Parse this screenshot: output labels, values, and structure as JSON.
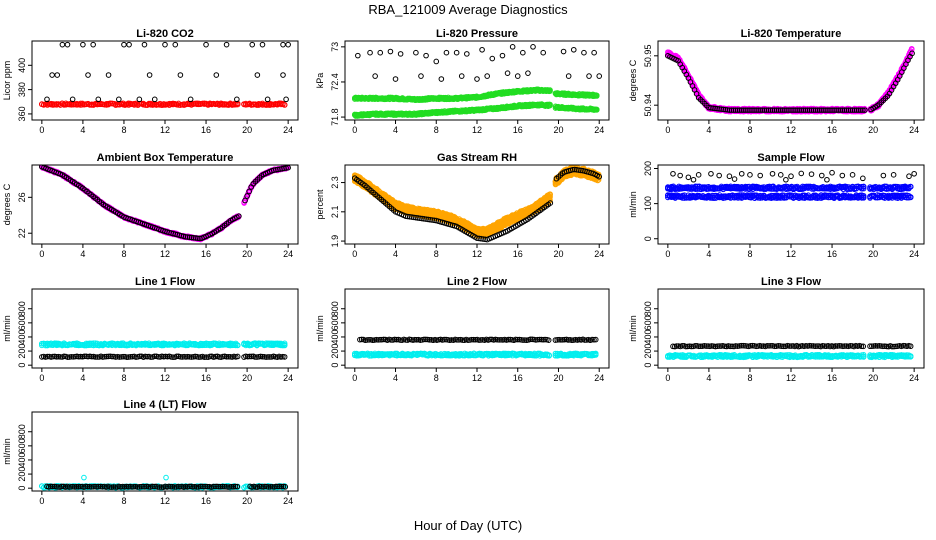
{
  "figure": {
    "title": "RBA_121009  Average Diagnostics",
    "xlabel": "Hour of Day (UTC)"
  },
  "colors": {
    "red": "#ff0000",
    "green": "#22dd22",
    "magenta": "#ff00ff",
    "orange": "#ffa500",
    "blue": "#0000ff",
    "cyan": "#00eeee",
    "black": "#000000"
  },
  "chart_data": [
    {
      "type": "scatter",
      "title": "Li-820 CO2",
      "ylabel": "Licor ppm",
      "xlim": [
        0,
        24
      ],
      "ylim": [
        355,
        420
      ],
      "xticks": [
        0,
        4,
        8,
        12,
        16,
        20,
        24
      ],
      "yticks": [
        360,
        380,
        400
      ],
      "series": [
        {
          "color": "red",
          "style": "band",
          "x": [
            0,
            19.2
          ],
          "y": [
            368,
            370
          ],
          "width": 3,
          "segments": [
            [
              0,
              19.2
            ],
            [
              19.7,
              23.8
            ]
          ]
        },
        {
          "color": "black",
          "style": "sparse",
          "x": [
            2.0,
            2.5,
            4.0,
            5.0,
            8.0,
            8.5,
            10.0,
            12.0,
            13.0,
            16.0,
            18.0,
            20.5,
            21.5,
            23.5,
            24.0,
            1.0,
            1.5,
            4.5,
            6.5,
            10.5,
            13.5,
            17.0,
            21.0,
            23.5,
            0.5,
            3.0,
            5.5,
            7.5,
            9.5,
            11.0,
            14.5,
            19.0,
            22.0,
            23.8
          ],
          "y": [
            417,
            417,
            417,
            417,
            417,
            417,
            417,
            417,
            417,
            417,
            417,
            417,
            417,
            417,
            417,
            392,
            392,
            392,
            392,
            392,
            392,
            392,
            392,
            392,
            372,
            372,
            372,
            372,
            372,
            372,
            372,
            372,
            372,
            372
          ]
        }
      ]
    },
    {
      "type": "scatter",
      "title": "Li-820 Pressure",
      "ylabel": "kPa",
      "xlim": [
        0,
        24
      ],
      "ylim": [
        71.75,
        73.1
      ],
      "xticks": [
        0,
        4,
        8,
        12,
        16,
        20,
        24
      ],
      "yticks": [
        71.8,
        72.4,
        73.0
      ],
      "series": [
        {
          "color": "green",
          "style": "curve",
          "x": [
            0,
            2,
            4,
            6,
            8,
            10,
            12,
            14,
            16,
            18,
            19.2,
            19.7,
            22,
            23.8
          ],
          "y": [
            72.12,
            72.12,
            72.12,
            72.1,
            72.12,
            72.12,
            72.14,
            72.2,
            72.24,
            72.26,
            72.25,
            72.2,
            72.18,
            72.17
          ],
          "width": 3
        },
        {
          "color": "green",
          "style": "curve",
          "x": [
            0,
            2,
            4,
            6,
            8,
            10,
            12,
            14,
            16,
            18,
            19.2,
            19.7,
            22,
            23.8
          ],
          "y": [
            71.83,
            71.85,
            71.85,
            71.85,
            71.88,
            71.9,
            71.92,
            71.95,
            71.99,
            72.01,
            72.0,
            71.97,
            71.94,
            71.93
          ],
          "width": 3
        },
        {
          "color": "black",
          "style": "sparse",
          "x": [
            0.3,
            1.5,
            2.5,
            3.5,
            4.5,
            6.0,
            7.0,
            8.0,
            9.0,
            10.0,
            11.0,
            12.5,
            13.5,
            14.5,
            15.5,
            16.5,
            17.5,
            18.5,
            20.5,
            21.5,
            22.5,
            23.5,
            2.0,
            4.0,
            6.5,
            8.5,
            10.5,
            12.0,
            13.0,
            15.0,
            16.0,
            17.0,
            21.0,
            23.0,
            24.0
          ],
          "y": [
            72.85,
            72.9,
            72.9,
            72.92,
            72.88,
            72.9,
            72.85,
            72.75,
            72.9,
            72.9,
            72.88,
            72.95,
            72.8,
            72.85,
            73.0,
            72.9,
            73.0,
            72.9,
            72.92,
            72.95,
            72.9,
            72.9,
            72.5,
            72.45,
            72.5,
            72.45,
            72.5,
            72.45,
            72.5,
            72.55,
            72.5,
            72.55,
            72.5,
            72.5,
            72.5
          ]
        }
      ]
    },
    {
      "type": "scatter",
      "title": "Li-820 Temperature",
      "ylabel": "degrees C",
      "xlim": [
        0,
        24
      ],
      "ylim": [
        50.937,
        50.953
      ],
      "xticks": [
        0,
        4,
        8,
        12,
        16,
        20,
        24
      ],
      "yticks": [
        50.94,
        50.95
      ],
      "series": [
        {
          "color": "magenta",
          "style": "curve",
          "x": [
            0,
            1,
            2,
            3,
            4,
            6,
            8,
            10,
            12,
            14,
            16,
            18,
            19.2,
            19.7,
            20.5,
            21.5,
            22.5,
            23.5,
            23.8
          ],
          "y": [
            50.9505,
            50.9495,
            50.946,
            50.942,
            50.9395,
            50.939,
            50.939,
            50.939,
            50.939,
            50.939,
            50.939,
            50.939,
            50.939,
            50.939,
            50.94,
            50.9425,
            50.946,
            50.95,
            50.9515
          ],
          "width": 5
        },
        {
          "color": "black",
          "style": "curve",
          "x": [
            0,
            1,
            2,
            3,
            4,
            6,
            8,
            10,
            12,
            14,
            16,
            18,
            19.2,
            19.7,
            20.5,
            21.5,
            22.5,
            23.5,
            23.8
          ],
          "y": [
            50.95,
            50.949,
            50.9455,
            50.9415,
            50.9395,
            50.939,
            50.939,
            50.939,
            50.939,
            50.939,
            50.939,
            50.939,
            50.939,
            50.939,
            50.94,
            50.942,
            50.9455,
            50.9495,
            50.9505
          ],
          "width": 0.6
        }
      ]
    },
    {
      "type": "scatter",
      "title": "Ambient Box Temperature",
      "ylabel": "degrees C",
      "xlim": [
        0,
        24
      ],
      "ylim": [
        20.8,
        29.6
      ],
      "xticks": [
        0,
        4,
        8,
        12,
        16,
        20,
        24
      ],
      "yticks": [
        22,
        26
      ],
      "series": [
        {
          "color": "magenta",
          "style": "curve",
          "x": [
            0,
            2,
            4,
            6,
            8,
            10,
            12,
            14,
            15.5,
            16.5,
            17.5,
            18.5,
            19.2,
            19.7,
            20.5,
            21.5,
            22.5,
            23.5,
            24
          ],
          "y": [
            29.4,
            28.5,
            27.0,
            25.2,
            23.8,
            23.0,
            22.2,
            21.6,
            21.4,
            21.9,
            22.6,
            23.5,
            23.9,
            25.4,
            27.4,
            28.5,
            29.0,
            29.2,
            29.3
          ],
          "width": 3
        },
        {
          "color": "black",
          "style": "curve",
          "x": [
            0,
            2,
            4,
            6,
            8,
            10,
            12,
            14,
            15.5,
            16.5,
            17.5,
            18.5,
            19.2,
            19.7,
            20.5,
            21.5,
            22.5,
            23.5,
            24
          ],
          "y": [
            29.4,
            28.5,
            27.0,
            25.2,
            23.8,
            23.0,
            22.2,
            21.6,
            21.4,
            21.9,
            22.6,
            23.5,
            23.9,
            25.4,
            27.4,
            28.5,
            29.0,
            29.2,
            29.3
          ],
          "width": 0.6
        }
      ]
    },
    {
      "type": "scatter",
      "title": "Gas Stream RH",
      "ylabel": "percent",
      "xlim": [
        0,
        24
      ],
      "ylim": [
        1.88,
        2.42
      ],
      "xticks": [
        0,
        4,
        8,
        12,
        16,
        20,
        24
      ],
      "yticks": [
        1.9,
        2.1,
        2.3
      ],
      "series": [
        {
          "color": "orange",
          "style": "curve",
          "x": [
            0,
            1,
            2,
            3,
            4,
            5,
            6,
            7,
            8,
            9,
            10,
            11,
            12,
            13,
            14,
            15,
            16,
            17,
            18,
            19.2,
            19.7,
            20.5,
            21.5,
            22.5,
            23.5,
            24
          ],
          "y": [
            2.33,
            2.29,
            2.24,
            2.19,
            2.14,
            2.12,
            2.1,
            2.09,
            2.08,
            2.06,
            2.04,
            2.0,
            1.96,
            1.96,
            2.0,
            2.04,
            2.07,
            2.1,
            2.14,
            2.2,
            2.3,
            2.36,
            2.38,
            2.37,
            2.35,
            2.33
          ],
          "width": 12
        },
        {
          "color": "black",
          "style": "curve",
          "x": [
            0,
            1,
            2,
            3,
            4,
            5,
            6,
            7,
            8,
            9,
            10,
            11,
            12,
            13,
            14,
            15,
            16,
            17,
            18,
            19.2,
            19.7,
            20.5,
            21.5,
            22.5,
            23.5,
            24
          ],
          "y": [
            2.33,
            2.28,
            2.22,
            2.16,
            2.1,
            2.07,
            2.06,
            2.05,
            2.04,
            2.02,
            2.0,
            1.96,
            1.92,
            1.91,
            1.94,
            1.97,
            2.01,
            2.05,
            2.1,
            2.16,
            2.32,
            2.37,
            2.39,
            2.38,
            2.36,
            2.34
          ],
          "width": 0.6
        }
      ]
    },
    {
      "type": "scatter",
      "title": "Sample Flow",
      "ylabel": "ml/min",
      "xlim": [
        0,
        24
      ],
      "ylim": [
        -15,
        210
      ],
      "xticks": [
        0,
        4,
        8,
        12,
        16,
        20,
        24
      ],
      "yticks": [
        0,
        100,
        200
      ],
      "series": [
        {
          "color": "blue",
          "style": "band",
          "x": [
            0,
            24
          ],
          "y": [
            145,
            145
          ],
          "width": 5,
          "segments": [
            [
              0,
              19.2
            ],
            [
              19.7,
              23.8
            ]
          ]
        },
        {
          "color": "blue",
          "style": "band",
          "x": [
            0,
            24
          ],
          "y": [
            120,
            120
          ],
          "width": 5,
          "segments": [
            [
              0,
              19.2
            ],
            [
              19.7,
              23.8
            ]
          ]
        },
        {
          "color": "black",
          "style": "sparse",
          "x": [
            0.5,
            1.2,
            2.0,
            3.0,
            4.2,
            5.0,
            6.0,
            7.2,
            8.0,
            9.0,
            10.2,
            11.0,
            12.0,
            13.0,
            14.0,
            15.0,
            16.0,
            17.0,
            18.0,
            21.0,
            22.0,
            23.5,
            24.0,
            2.5,
            6.5,
            11.5,
            15.5,
            19.0
          ],
          "y": [
            185,
            180,
            175,
            182,
            185,
            180,
            178,
            185,
            182,
            180,
            185,
            182,
            178,
            186,
            184,
            180,
            188,
            180,
            182,
            180,
            182,
            178,
            185,
            168,
            170,
            168,
            168,
            172
          ]
        }
      ]
    },
    {
      "type": "scatter",
      "title": "Line 1 Flow",
      "ylabel": "ml/min",
      "xlim": [
        0,
        24
      ],
      "ylim": [
        -40,
        1080
      ],
      "xticks": [
        0,
        4,
        8,
        12,
        16,
        20,
        24
      ],
      "yticks": [
        0,
        200,
        400,
        600,
        800
      ],
      "series": [
        {
          "color": "cyan",
          "style": "band",
          "x": [
            0,
            24
          ],
          "y": [
            295,
            295
          ],
          "width": 4,
          "segments": [
            [
              0,
              19.2
            ],
            [
              19.7,
              23.8
            ]
          ]
        },
        {
          "color": "black",
          "style": "band",
          "x": [
            0,
            24
          ],
          "y": [
            120,
            120
          ],
          "width": 1.5,
          "segments": [
            [
              0,
              19.2
            ],
            [
              19.7,
              23.8
            ]
          ]
        }
      ]
    },
    {
      "type": "scatter",
      "title": "Line 2 Flow",
      "ylabel": "ml/min",
      "xlim": [
        0,
        24
      ],
      "ylim": [
        -40,
        1080
      ],
      "xticks": [
        0,
        4,
        8,
        12,
        16,
        20,
        24
      ],
      "yticks": [
        0,
        200,
        400,
        600,
        800
      ],
      "series": [
        {
          "color": "cyan",
          "style": "band",
          "x": [
            0,
            24
          ],
          "y": [
            150,
            150
          ],
          "width": 4,
          "segments": [
            [
              0,
              19.2
            ],
            [
              19.7,
              23.8
            ]
          ]
        },
        {
          "color": "black",
          "style": "band",
          "x": [
            0,
            24
          ],
          "y": [
            360,
            360
          ],
          "width": 1.5,
          "segments": [
            [
              0.5,
              19.2
            ],
            [
              19.7,
              23.8
            ]
          ]
        }
      ]
    },
    {
      "type": "scatter",
      "title": "Line 3 Flow",
      "ylabel": "ml/min",
      "xlim": [
        0,
        24
      ],
      "ylim": [
        -40,
        1080
      ],
      "xticks": [
        0,
        4,
        8,
        12,
        16,
        20,
        24
      ],
      "yticks": [
        0,
        200,
        400,
        600,
        800
      ],
      "series": [
        {
          "color": "cyan",
          "style": "band",
          "x": [
            0,
            24
          ],
          "y": [
            130,
            130
          ],
          "width": 4,
          "segments": [
            [
              0,
              19.2
            ],
            [
              19.7,
              23.8
            ]
          ]
        },
        {
          "color": "black",
          "style": "band",
          "x": [
            0,
            24
          ],
          "y": [
            270,
            270
          ],
          "width": 1.5,
          "segments": [
            [
              0.5,
              19.2
            ],
            [
              19.7,
              23.8
            ]
          ]
        }
      ]
    },
    {
      "type": "scatter",
      "title": "Line 4 (LT) Flow",
      "ylabel": "ml/min",
      "xlim": [
        0,
        24
      ],
      "ylim": [
        -40,
        1080
      ],
      "xticks": [
        0,
        4,
        8,
        12,
        16,
        20,
        24
      ],
      "yticks": [
        0,
        200,
        400,
        600,
        800
      ],
      "series": [
        {
          "color": "cyan",
          "style": "band",
          "x": [
            0,
            24
          ],
          "y": [
            20,
            20
          ],
          "width": 3,
          "segments": [
            [
              0,
              19.2
            ],
            [
              19.7,
              23.8
            ]
          ]
        },
        {
          "color": "black",
          "style": "band",
          "x": [
            0,
            24
          ],
          "y": [
            20,
            20
          ],
          "width": 1.2,
          "segments": [
            [
              0.5,
              19.2
            ],
            [
              20.3,
              23.8
            ]
          ]
        },
        {
          "color": "cyan",
          "style": "sparse",
          "x": [
            4.1,
            12.1
          ],
          "y": [
            150,
            150
          ]
        }
      ]
    }
  ]
}
